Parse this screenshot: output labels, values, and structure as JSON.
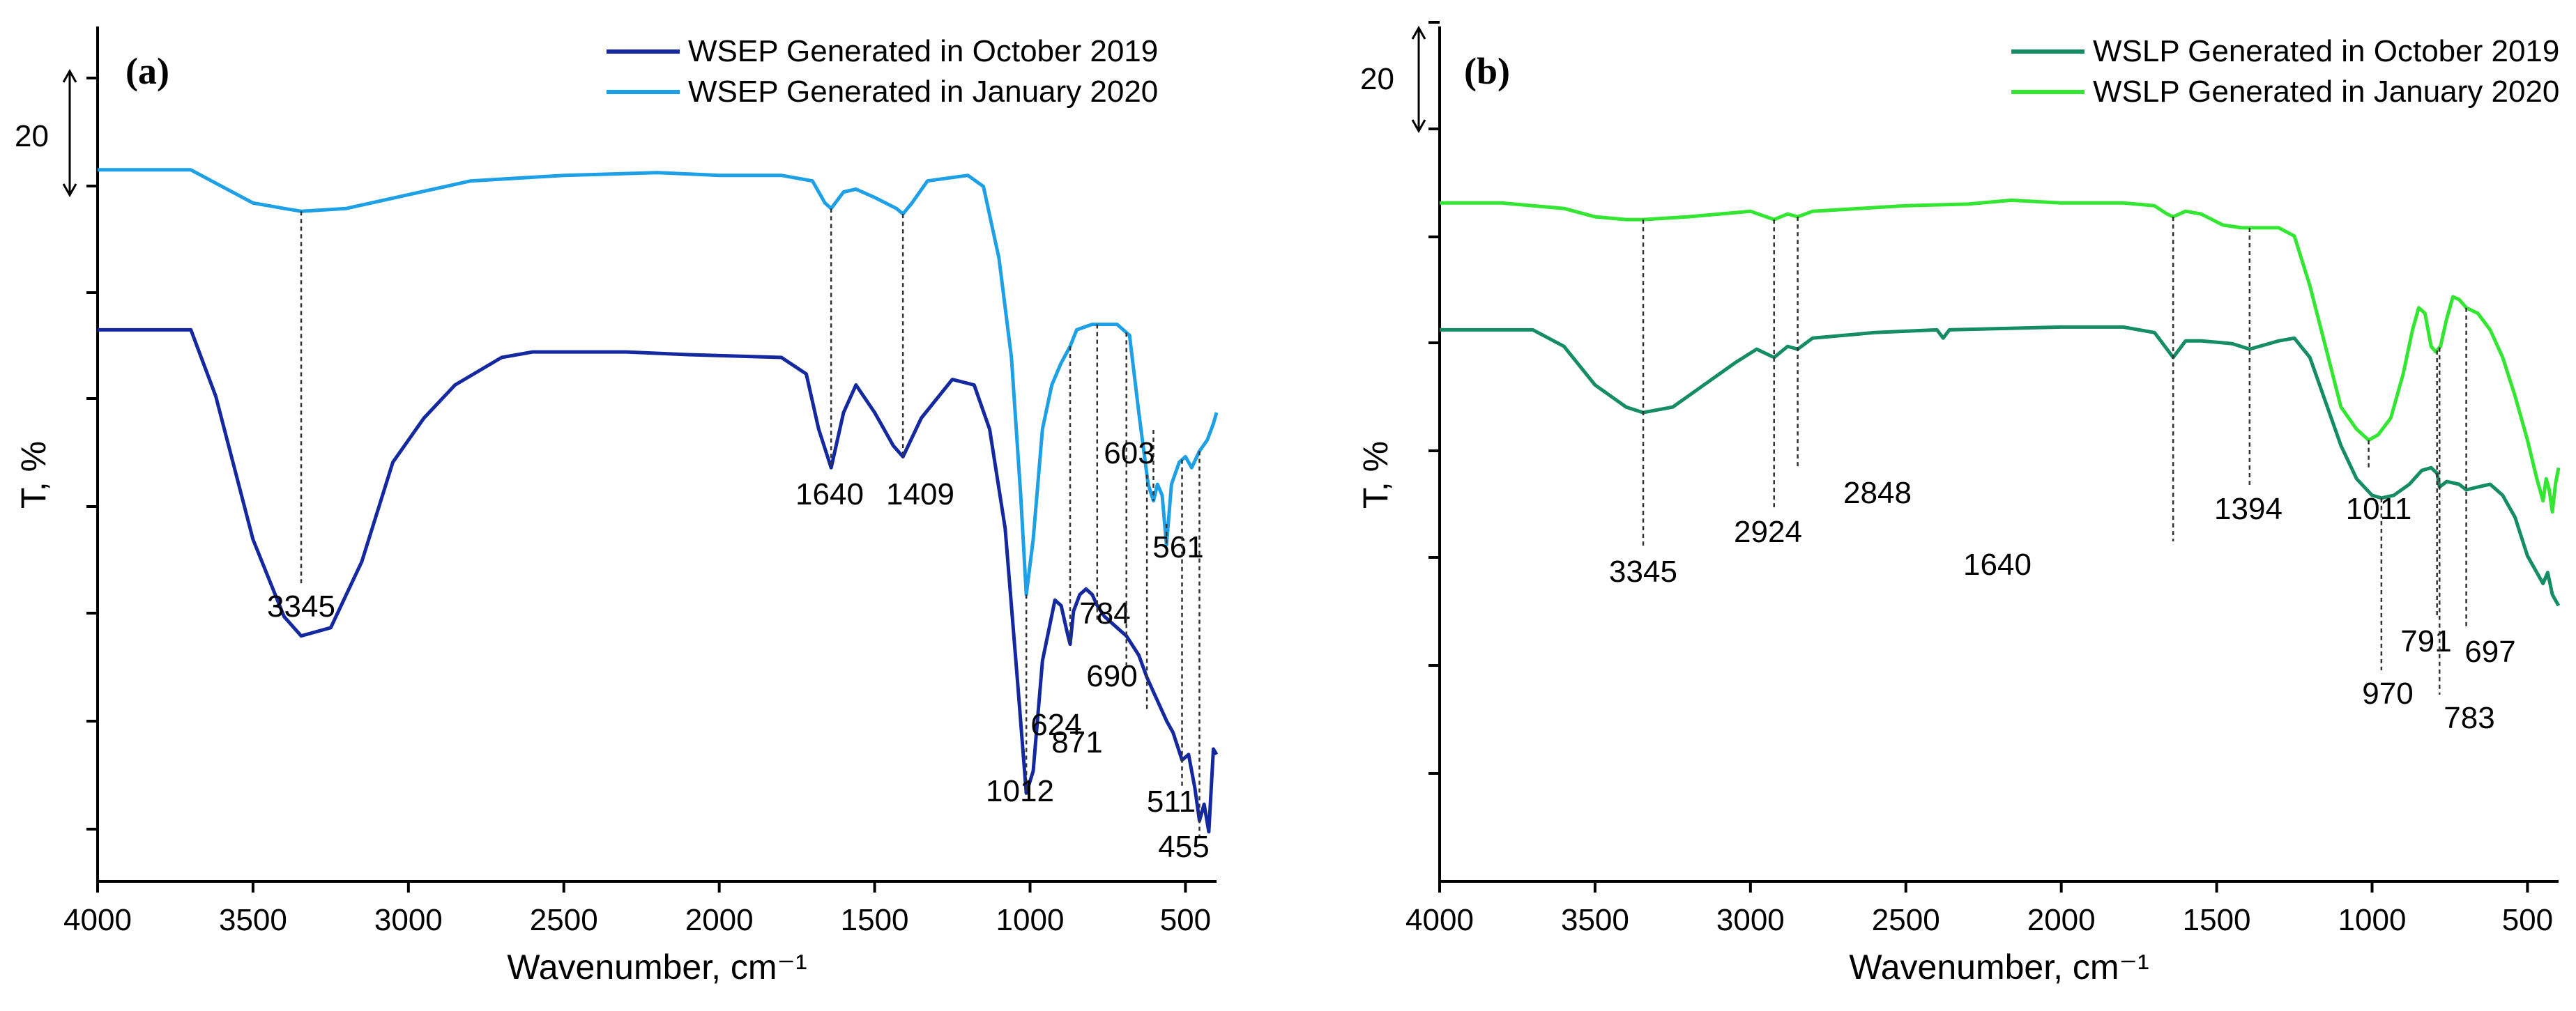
{
  "chart_data": [
    {
      "type": "line",
      "panel_label": "(a)",
      "xlabel": "Wavenumber, cm⁻¹",
      "ylabel": "T, %",
      "xlim": [
        4000,
        400
      ],
      "x_ticks": [
        4000,
        3500,
        3000,
        2500,
        2000,
        1500,
        1000,
        500
      ],
      "scale_bar": "20",
      "legend_position": "top-right",
      "series": [
        {
          "name": "WSEP Generated in October 2019",
          "color": "#1428a0",
          "points": [
            [
              4000,
              100
            ],
            [
              3700,
              100
            ],
            [
              3620,
              88
            ],
            [
              3500,
              62
            ],
            [
              3400,
              48
            ],
            [
              3345,
              44.5
            ],
            [
              3250,
              46
            ],
            [
              3150,
              58
            ],
            [
              3050,
              76
            ],
            [
              2950,
              84
            ],
            [
              2850,
              90
            ],
            [
              2700,
              95
            ],
            [
              2600,
              96
            ],
            [
              2300,
              96
            ],
            [
              2100,
              95.5
            ],
            [
              1800,
              95
            ],
            [
              1720,
              92
            ],
            [
              1680,
              82
            ],
            [
              1640,
              75
            ],
            [
              1600,
              85
            ],
            [
              1560,
              90
            ],
            [
              1500,
              85
            ],
            [
              1440,
              79
            ],
            [
              1409,
              77
            ],
            [
              1350,
              84
            ],
            [
              1250,
              91
            ],
            [
              1180,
              90
            ],
            [
              1130,
              82
            ],
            [
              1080,
              64
            ],
            [
              1040,
              36
            ],
            [
              1012,
              16
            ],
            [
              990,
              20
            ],
            [
              960,
              40
            ],
            [
              920,
              51
            ],
            [
              900,
              50
            ],
            [
              880,
              45
            ],
            [
              871,
              43
            ],
            [
              860,
              49
            ],
            [
              840,
              52
            ],
            [
              820,
              53
            ],
            [
              800,
              52
            ],
            [
              784,
              50
            ],
            [
              760,
              48
            ],
            [
              720,
              46
            ],
            [
              690,
              44.5
            ],
            [
              650,
              41
            ],
            [
              624,
              37
            ],
            [
              600,
              34
            ],
            [
              560,
              29
            ],
            [
              540,
              27
            ],
            [
              511,
              22
            ],
            [
              490,
              23
            ],
            [
              470,
              17
            ],
            [
              455,
              11
            ],
            [
              440,
              14
            ],
            [
              425,
              9
            ],
            [
              410,
              24
            ],
            [
              400,
              23
            ]
          ]
        },
        {
          "name": "WSEP Generated in January 2020",
          "color": "#1ea0e6",
          "points": [
            [
              4000,
              129
            ],
            [
              3700,
              129
            ],
            [
              3600,
              126
            ],
            [
              3500,
              123
            ],
            [
              3400,
              122
            ],
            [
              3345,
              121.5
            ],
            [
              3200,
              122
            ],
            [
              3000,
              124.5
            ],
            [
              2800,
              127
            ],
            [
              2500,
              128
            ],
            [
              2200,
              128.5
            ],
            [
              2000,
              128
            ],
            [
              1800,
              128
            ],
            [
              1700,
              127
            ],
            [
              1660,
              123
            ],
            [
              1640,
              122
            ],
            [
              1600,
              125
            ],
            [
              1560,
              125.5
            ],
            [
              1500,
              124
            ],
            [
              1430,
              122
            ],
            [
              1409,
              121
            ],
            [
              1380,
              123
            ],
            [
              1330,
              127
            ],
            [
              1200,
              128
            ],
            [
              1150,
              126
            ],
            [
              1100,
              113
            ],
            [
              1060,
              95
            ],
            [
              1030,
              70
            ],
            [
              1012,
              52
            ],
            [
              990,
              62
            ],
            [
              960,
              82
            ],
            [
              930,
              90
            ],
            [
              900,
              94
            ],
            [
              871,
              97
            ],
            [
              850,
              100
            ],
            [
              800,
              101
            ],
            [
              720,
              101
            ],
            [
              680,
              99
            ],
            [
              650,
              85
            ],
            [
              620,
              72
            ],
            [
              603,
              69
            ],
            [
              590,
              72
            ],
            [
              575,
              70
            ],
            [
              561,
              61
            ],
            [
              545,
              72
            ],
            [
              520,
              76
            ],
            [
              500,
              77
            ],
            [
              480,
              75
            ],
            [
              455,
              78
            ],
            [
              430,
              80
            ],
            [
              410,
              83
            ],
            [
              400,
              85
            ]
          ]
        }
      ],
      "peaks": [
        {
          "x": 3345,
          "label": "3345"
        },
        {
          "x": 1640,
          "label": "1640"
        },
        {
          "x": 1409,
          "label": "1409"
        },
        {
          "x": 1012,
          "label": "1012"
        },
        {
          "x": 871,
          "label": "871"
        },
        {
          "x": 784,
          "label": "784"
        },
        {
          "x": 690,
          "label": "690"
        },
        {
          "x": 624,
          "label": "624"
        },
        {
          "x": 603,
          "label": "603"
        },
        {
          "x": 561,
          "label": "561"
        },
        {
          "x": 511,
          "label": "511"
        },
        {
          "x": 455,
          "label": "455"
        }
      ]
    },
    {
      "type": "line",
      "panel_label": "(b)",
      "xlabel": "Wavenumber, cm⁻¹",
      "ylabel": "T, %",
      "xlim": [
        4000,
        400
      ],
      "x_ticks": [
        4000,
        3500,
        3000,
        2500,
        2000,
        1500,
        1000,
        500
      ],
      "scale_bar": "20",
      "legend_position": "top-right",
      "series": [
        {
          "name": "WSLP Generated in October 2019",
          "color": "#148c64",
          "points": [
            [
              4000,
              100
            ],
            [
              3700,
              100
            ],
            [
              3600,
              97
            ],
            [
              3500,
              90
            ],
            [
              3400,
              86
            ],
            [
              3345,
              85
            ],
            [
              3250,
              86
            ],
            [
              3150,
              90
            ],
            [
              3050,
              94
            ],
            [
              2980,
              96.5
            ],
            [
              2924,
              95
            ],
            [
              2880,
              97
            ],
            [
              2848,
              96.5
            ],
            [
              2800,
              98.5
            ],
            [
              2600,
              99.5
            ],
            [
              2400,
              100
            ],
            [
              2380,
              98.5
            ],
            [
              2360,
              100
            ],
            [
              2000,
              100.5
            ],
            [
              1800,
              100.5
            ],
            [
              1700,
              99.5
            ],
            [
              1660,
              96.5
            ],
            [
              1640,
              95
            ],
            [
              1600,
              98
            ],
            [
              1550,
              98
            ],
            [
              1450,
              97.5
            ],
            [
              1394,
              96.5
            ],
            [
              1300,
              98
            ],
            [
              1250,
              98.5
            ],
            [
              1200,
              95
            ],
            [
              1150,
              87
            ],
            [
              1100,
              79
            ],
            [
              1050,
              73
            ],
            [
              1000,
              70
            ],
            [
              970,
              69.5
            ],
            [
              930,
              70
            ],
            [
              880,
              72
            ],
            [
              840,
              74.5
            ],
            [
              810,
              75
            ],
            [
              791,
              74
            ],
            [
              783,
              71.5
            ],
            [
              760,
              72.5
            ],
            [
              720,
              72
            ],
            [
              697,
              71
            ],
            [
              660,
              71.5
            ],
            [
              620,
              72
            ],
            [
              580,
              70
            ],
            [
              540,
              66
            ],
            [
              500,
              59
            ],
            [
              470,
              56
            ],
            [
              450,
              54
            ],
            [
              435,
              56
            ],
            [
              420,
              52
            ],
            [
              410,
              51
            ],
            [
              400,
              50
            ]
          ]
        },
        {
          "name": "WSLP Generated in January 2020",
          "color": "#32e632",
          "points": [
            [
              4000,
              123
            ],
            [
              3800,
              123
            ],
            [
              3600,
              122
            ],
            [
              3500,
              120.5
            ],
            [
              3400,
              120
            ],
            [
              3345,
              120
            ],
            [
              3200,
              120.5
            ],
            [
              3000,
              121.5
            ],
            [
              2924,
              120
            ],
            [
              2880,
              121
            ],
            [
              2848,
              120.5
            ],
            [
              2800,
              121.5
            ],
            [
              2500,
              122.5
            ],
            [
              2300,
              122.8
            ],
            [
              2160,
              123.5
            ],
            [
              2000,
              123
            ],
            [
              1800,
              123
            ],
            [
              1700,
              122.5
            ],
            [
              1660,
              121
            ],
            [
              1640,
              120.5
            ],
            [
              1600,
              121.5
            ],
            [
              1550,
              121
            ],
            [
              1480,
              119
            ],
            [
              1420,
              118.5
            ],
            [
              1394,
              118.5
            ],
            [
              1300,
              118.5
            ],
            [
              1250,
              117
            ],
            [
              1200,
              108
            ],
            [
              1150,
              97
            ],
            [
              1100,
              86
            ],
            [
              1050,
              82
            ],
            [
              1011,
              80
            ],
            [
              980,
              81
            ],
            [
              940,
              84
            ],
            [
              900,
              92
            ],
            [
              870,
              100
            ],
            [
              850,
              104
            ],
            [
              830,
              103
            ],
            [
              810,
              97
            ],
            [
              795,
              96
            ],
            [
              780,
              97
            ],
            [
              760,
              102
            ],
            [
              740,
              106
            ],
            [
              720,
              105.5
            ],
            [
              697,
              104
            ],
            [
              660,
              103
            ],
            [
              620,
              100
            ],
            [
              580,
              95
            ],
            [
              540,
              88
            ],
            [
              500,
              80
            ],
            [
              470,
              73
            ],
            [
              450,
              69
            ],
            [
              440,
              73
            ],
            [
              430,
              71
            ],
            [
              420,
              67
            ],
            [
              410,
              72
            ],
            [
              400,
              75
            ]
          ]
        }
      ],
      "peaks": [
        {
          "x": 3345,
          "label": "3345"
        },
        {
          "x": 2924,
          "label": "2924"
        },
        {
          "x": 2848,
          "label": "2848"
        },
        {
          "x": 1640,
          "label": "1640"
        },
        {
          "x": 1394,
          "label": "1394"
        },
        {
          "x": 1011,
          "label": "1011"
        },
        {
          "x": 970,
          "label": "970"
        },
        {
          "x": 791,
          "label": "791"
        },
        {
          "x": 783,
          "label": "783"
        },
        {
          "x": 697,
          "label": "697"
        }
      ]
    }
  ]
}
